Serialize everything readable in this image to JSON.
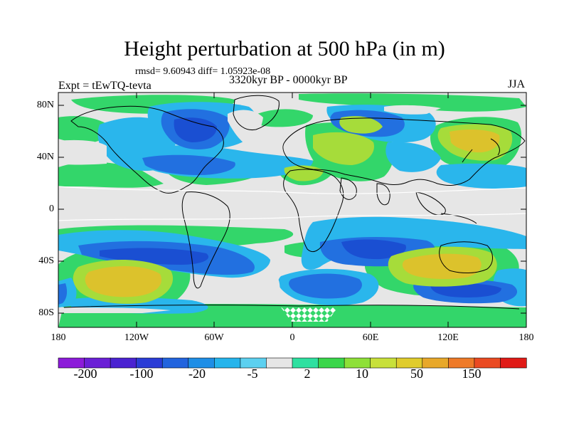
{
  "title": "Height perturbation at 500 hPa (in m)",
  "stats": "rmsd= 9.60943 diff= 1.05923e-08",
  "experiment": "Expt = tEwTQ-tevta",
  "period": "3320kyr BP - 0000kyr BP",
  "season": "JJA",
  "axes": {
    "y_ticks": [
      "80N",
      "40N",
      "0",
      "40S",
      "80S"
    ],
    "x_ticks": [
      "180",
      "120W",
      "60W",
      "0",
      "60E",
      "120E",
      "180"
    ]
  },
  "colorbar": {
    "labels": [
      "-200",
      "-100",
      "-20",
      "-5",
      "2",
      "10",
      "50",
      "150"
    ],
    "colors": [
      "#8c1bd9",
      "#6a1fd6",
      "#4a22d1",
      "#2a3cd6",
      "#2264de",
      "#1e8ee6",
      "#25b4ec",
      "#5cd0f0",
      "#e6e6e6",
      "#2ee0a0",
      "#3ad64a",
      "#8ee038",
      "#c8e03a",
      "#e0cc2c",
      "#e8a82a",
      "#ee7a28",
      "#ea4a22",
      "#e01a16"
    ]
  },
  "palette": {
    "background": "#e6e6e6",
    "green": "#33d66a",
    "lightblue": "#2ab6ec",
    "blue": "#2270e0",
    "deepblue": "#1a4fd2",
    "yellowgreen": "#a6dc3a",
    "olive": "#cdd43a",
    "gold": "#dcc22c"
  }
}
